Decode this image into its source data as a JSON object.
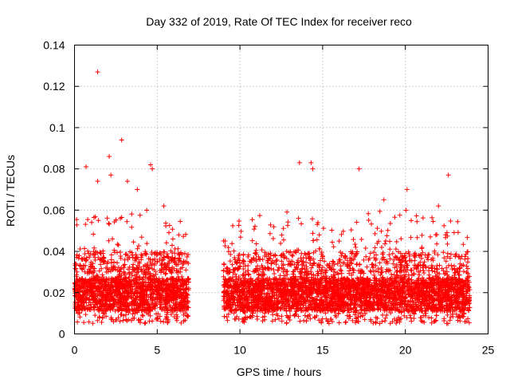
{
  "chart_data": {
    "type": "scatter",
    "title": "Day 332 of 2019, Rate Of TEC Index for receiver reco",
    "xlabel": "GPS time / hours",
    "ylabel": "ROTI / TECUs",
    "xlim": [
      0,
      25
    ],
    "ylim": [
      0,
      0.14
    ],
    "x_ticks": [
      0,
      5,
      10,
      15,
      20,
      25
    ],
    "x_tick_labels": [
      "0",
      "5",
      "10",
      "15",
      "20",
      "25"
    ],
    "y_ticks": [
      0,
      0.02,
      0.04,
      0.06,
      0.08,
      0.1,
      0.12,
      0.14
    ],
    "y_tick_labels": [
      "0",
      "0.02",
      "0.04",
      "0.06",
      "0.08",
      "0.1",
      "0.12",
      "0.14"
    ],
    "grid": true,
    "marker": "plus",
    "color": "#ff0000",
    "data_segments": [
      {
        "x_start": 0.0,
        "x_end": 6.9
      },
      {
        "x_start": 9.0,
        "x_end": 23.9
      }
    ],
    "data_gap": [
      6.9,
      9.0
    ],
    "series": [
      {
        "name": "ROTI",
        "notable_points": [
          {
            "x": 1.4,
            "y": 0.127
          },
          {
            "x": 2.85,
            "y": 0.094
          },
          {
            "x": 2.1,
            "y": 0.086
          },
          {
            "x": 0.7,
            "y": 0.081
          },
          {
            "x": 4.6,
            "y": 0.082
          },
          {
            "x": 4.7,
            "y": 0.08
          },
          {
            "x": 13.6,
            "y": 0.083
          },
          {
            "x": 14.3,
            "y": 0.083
          },
          {
            "x": 14.4,
            "y": 0.08
          },
          {
            "x": 17.2,
            "y": 0.08
          },
          {
            "x": 22.6,
            "y": 0.077
          },
          {
            "x": 2.2,
            "y": 0.077
          },
          {
            "x": 1.4,
            "y": 0.074
          },
          {
            "x": 3.2,
            "y": 0.074
          },
          {
            "x": 20.1,
            "y": 0.07
          },
          {
            "x": 3.8,
            "y": 0.07
          },
          {
            "x": 18.7,
            "y": 0.065
          },
          {
            "x": 22.0,
            "y": 0.062
          },
          {
            "x": 5.4,
            "y": 0.062
          },
          {
            "x": 9.1,
            "y": 0.045
          }
        ]
      }
    ]
  }
}
